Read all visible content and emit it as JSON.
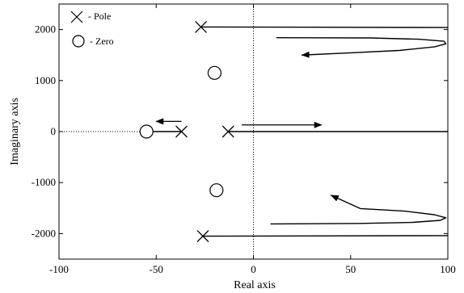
{
  "chart_data": {
    "type": "scatter",
    "title": "",
    "xlabel": "Real axis",
    "ylabel": "Imaginary axis",
    "xlim": [
      -100,
      100
    ],
    "ylim": [
      -2500,
      2500
    ],
    "xticks": [
      -100,
      -50,
      0,
      50,
      100
    ],
    "yticks": [
      -2000,
      -1000,
      0,
      1000,
      2000
    ],
    "xtick_labels": [
      "-100",
      "-50",
      "0",
      "50",
      "100"
    ],
    "ytick_labels": [
      "-2000",
      "-1000",
      "0",
      "1000",
      "2000"
    ],
    "grid": false,
    "legend_position": "top-left",
    "legend": [
      {
        "marker": "x",
        "label": "- Pole"
      },
      {
        "marker": "o",
        "label": "- Zero"
      }
    ],
    "poles": [
      {
        "x": -27,
        "y": 2050
      },
      {
        "x": -37,
        "y": 0
      },
      {
        "x": -13,
        "y": 0
      },
      {
        "x": -26,
        "y": -2050
      }
    ],
    "zeros": [
      {
        "x": -55,
        "y": 0
      },
      {
        "x": -20,
        "y": 1150
      },
      {
        "x": -19,
        "y": -1150
      }
    ],
    "loci": [
      {
        "points": [
          [
            -27,
            2050
          ],
          [
            100,
            2040
          ]
        ]
      },
      {
        "points": [
          [
            -13,
            0
          ],
          [
            100,
            0
          ]
        ]
      },
      {
        "points": [
          [
            -26,
            -2050
          ],
          [
            100,
            -2040
          ]
        ]
      },
      {
        "points": [
          [
            -55,
            0
          ],
          [
            -37,
            0
          ]
        ]
      },
      {
        "points": [
          [
            12,
            1840
          ],
          [
            60,
            1835
          ],
          [
            85,
            1810
          ],
          [
            98,
            1770
          ],
          [
            99,
            1720
          ],
          [
            93,
            1660
          ],
          [
            75,
            1590
          ],
          [
            48,
            1540
          ],
          [
            25,
            1500
          ]
        ]
      },
      {
        "points": [
          [
            9,
            -1810
          ],
          [
            55,
            -1800
          ],
          [
            82,
            -1780
          ],
          [
            96,
            -1740
          ],
          [
            99,
            -1690
          ],
          [
            93,
            -1630
          ],
          [
            78,
            -1560
          ],
          [
            55,
            -1510
          ],
          [
            40,
            -1250
          ]
        ]
      }
    ],
    "direction_arrows": [
      {
        "from": [
          -37,
          200
        ],
        "to": [
          -50,
          200
        ]
      },
      {
        "from": [
          -6,
          130
        ],
        "to": [
          35,
          130
        ]
      },
      {
        "from": [
          35,
          1250
        ],
        "to": [
          24,
          1250
        ]
      },
      {
        "from": [
          45,
          -1250
        ],
        "to": [
          41,
          -1250
        ]
      }
    ],
    "reference_lines": [
      {
        "orientation": "vertical",
        "value": 0,
        "style": "dotted"
      },
      {
        "orientation": "horizontal",
        "value": 0,
        "style": "dotted",
        "from": -100,
        "to": -55
      }
    ]
  }
}
